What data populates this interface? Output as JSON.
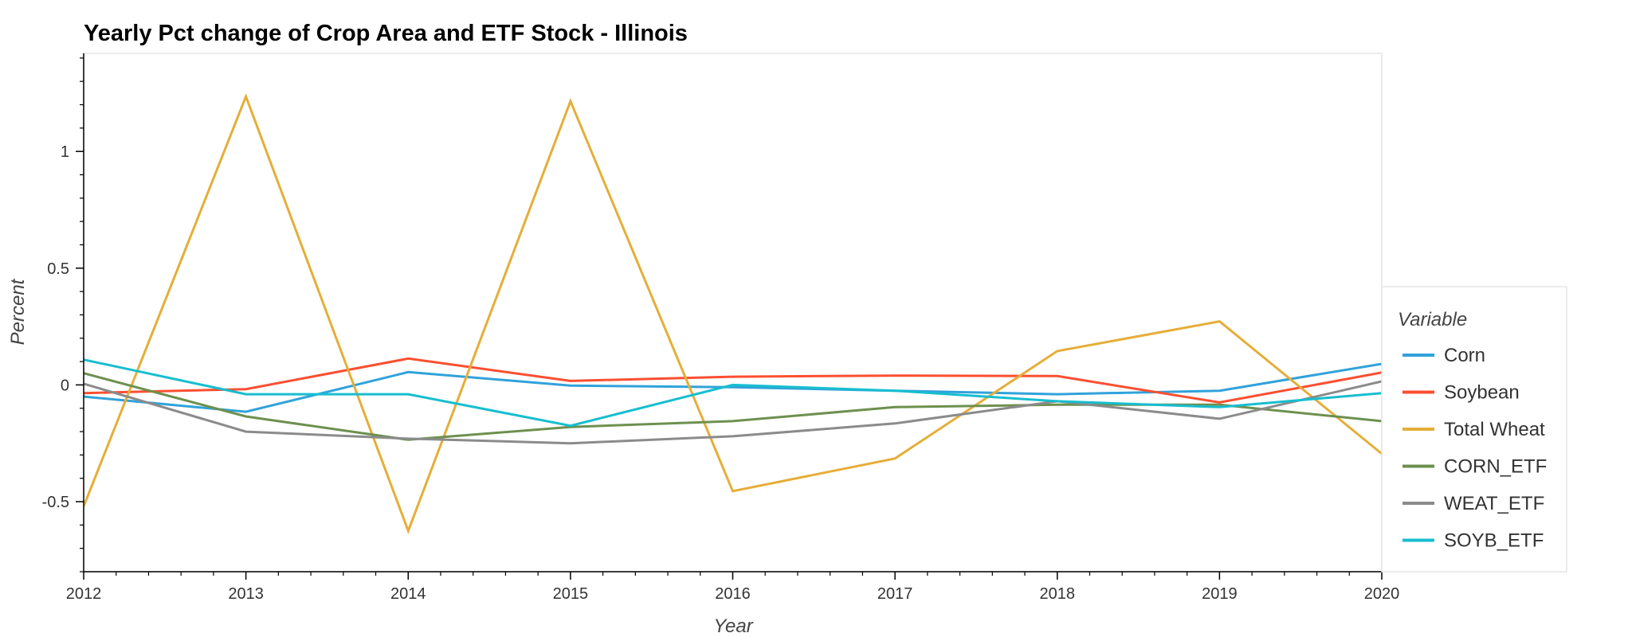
{
  "chart_data": {
    "type": "line",
    "title": "Yearly Pct change of Crop Area and ETF Stock - Illinois",
    "xlabel": "Year",
    "ylabel": "Percent",
    "x": [
      "2012",
      "2013",
      "2014",
      "2015",
      "2016",
      "2017",
      "2018",
      "2019",
      "2020"
    ],
    "xlim": [
      2012,
      2020
    ],
    "ylim": [
      -0.8,
      1.42
    ],
    "yticks": [
      -0.5,
      0,
      0.5,
      1
    ],
    "ytick_labels": [
      "-0.5",
      "0",
      "0.5",
      "1"
    ],
    "legend_title": "Variable",
    "legend_position": "right",
    "grid": false,
    "series": [
      {
        "name": "Corn",
        "color": "#30a2da",
        "values": [
          -0.05,
          -0.115,
          0.055,
          -0.003,
          -0.01,
          -0.025,
          -0.04,
          -0.025,
          0.09
        ]
      },
      {
        "name": "Soybean",
        "color": "#fc4f30",
        "values": [
          -0.035,
          -0.018,
          0.113,
          0.017,
          0.035,
          0.04,
          0.038,
          -0.075,
          0.053
        ]
      },
      {
        "name": "Total Wheat",
        "color": "#e5ae38",
        "values": [
          -0.52,
          1.235,
          -0.625,
          1.215,
          -0.455,
          -0.315,
          0.145,
          0.272,
          -0.295
        ]
      },
      {
        "name": "CORN_ETF",
        "color": "#6d904f",
        "values": [
          0.05,
          -0.135,
          -0.235,
          -0.18,
          -0.155,
          -0.095,
          -0.085,
          -0.085,
          -0.155
        ]
      },
      {
        "name": "WEAT_ETF",
        "color": "#8b8b8b",
        "values": [
          0.005,
          -0.2,
          -0.23,
          -0.25,
          -0.22,
          -0.165,
          -0.07,
          -0.145,
          0.015
        ]
      },
      {
        "name": "SOYB_ETF",
        "color": "#17becf",
        "values": [
          0.108,
          -0.04,
          -0.04,
          -0.175,
          0.0,
          -0.025,
          -0.07,
          -0.095,
          -0.035
        ]
      }
    ]
  }
}
